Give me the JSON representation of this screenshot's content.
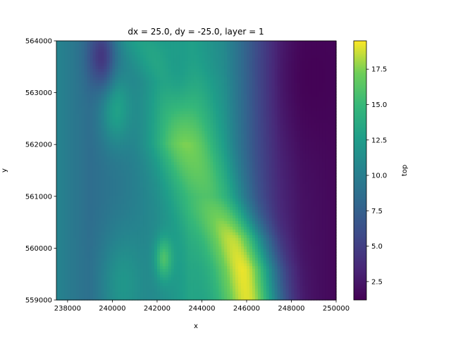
{
  "chart_data": {
    "type": "heatmap",
    "title": "dx = 25.0, dy = -25.0, layer = 1",
    "xlabel": "x",
    "ylabel": "y",
    "xlim": [
      237500,
      250000
    ],
    "ylim": [
      559000,
      564000
    ],
    "x_ticks": [
      238000,
      240000,
      242000,
      244000,
      246000,
      248000,
      250000
    ],
    "x_tick_labels": [
      "238000",
      "240000",
      "242000",
      "244000",
      "246000",
      "248000",
      "250000"
    ],
    "y_ticks": [
      559000,
      560000,
      561000,
      562000,
      563000,
      564000
    ],
    "y_tick_labels": [
      "559000",
      "560000",
      "561000",
      "562000",
      "563000",
      "564000"
    ],
    "colormap": "viridis",
    "colorbar": {
      "label": "top",
      "vmin": 1.2,
      "vmax": 19.5,
      "ticks": [
        2.5,
        5.0,
        7.5,
        10.0,
        12.5,
        15.0,
        17.5
      ],
      "tick_labels": [
        "2.5",
        "5.0",
        "7.5",
        "10.0",
        "12.5",
        "15.0",
        "17.5"
      ]
    },
    "grid": false,
    "features": [
      {
        "kind": "ridge",
        "x": [
          241500,
          243000,
          243300,
          244200,
          245300,
          245800,
          246000
        ],
        "y": [
          564000,
          563200,
          562000,
          561000,
          560200,
          559600,
          559000
        ],
        "value": [
          13,
          14,
          17.5,
          16,
          18.5,
          19.2,
          19
        ],
        "width": 1400
      },
      {
        "kind": "blob",
        "x": 240200,
        "y": 562700,
        "value": 13,
        "radius": 700
      },
      {
        "kind": "blob",
        "x": 242300,
        "y": 559800,
        "value": 16,
        "radius": 400
      },
      {
        "kind": "blob",
        "x": 240500,
        "y": 559300,
        "value": 12,
        "radius": 1000
      },
      {
        "kind": "blob",
        "x": 242900,
        "y": 563600,
        "value": 12.5,
        "radius": 700
      },
      {
        "kind": "blob",
        "x": 239500,
        "y": 563700,
        "value": 4.5,
        "radius": 600
      },
      {
        "kind": "blob",
        "x": 249000,
        "y": 563300,
        "value": 1.3,
        "radius": 1500
      }
    ],
    "background_profile": {
      "x": [
        237500,
        239000,
        240500,
        242000,
        243500,
        245000,
        246500,
        247500,
        248500,
        250000
      ],
      "value": [
        10.5,
        8.5,
        9.5,
        11,
        13,
        11,
        6,
        3.5,
        2.2,
        1.6
      ]
    }
  }
}
